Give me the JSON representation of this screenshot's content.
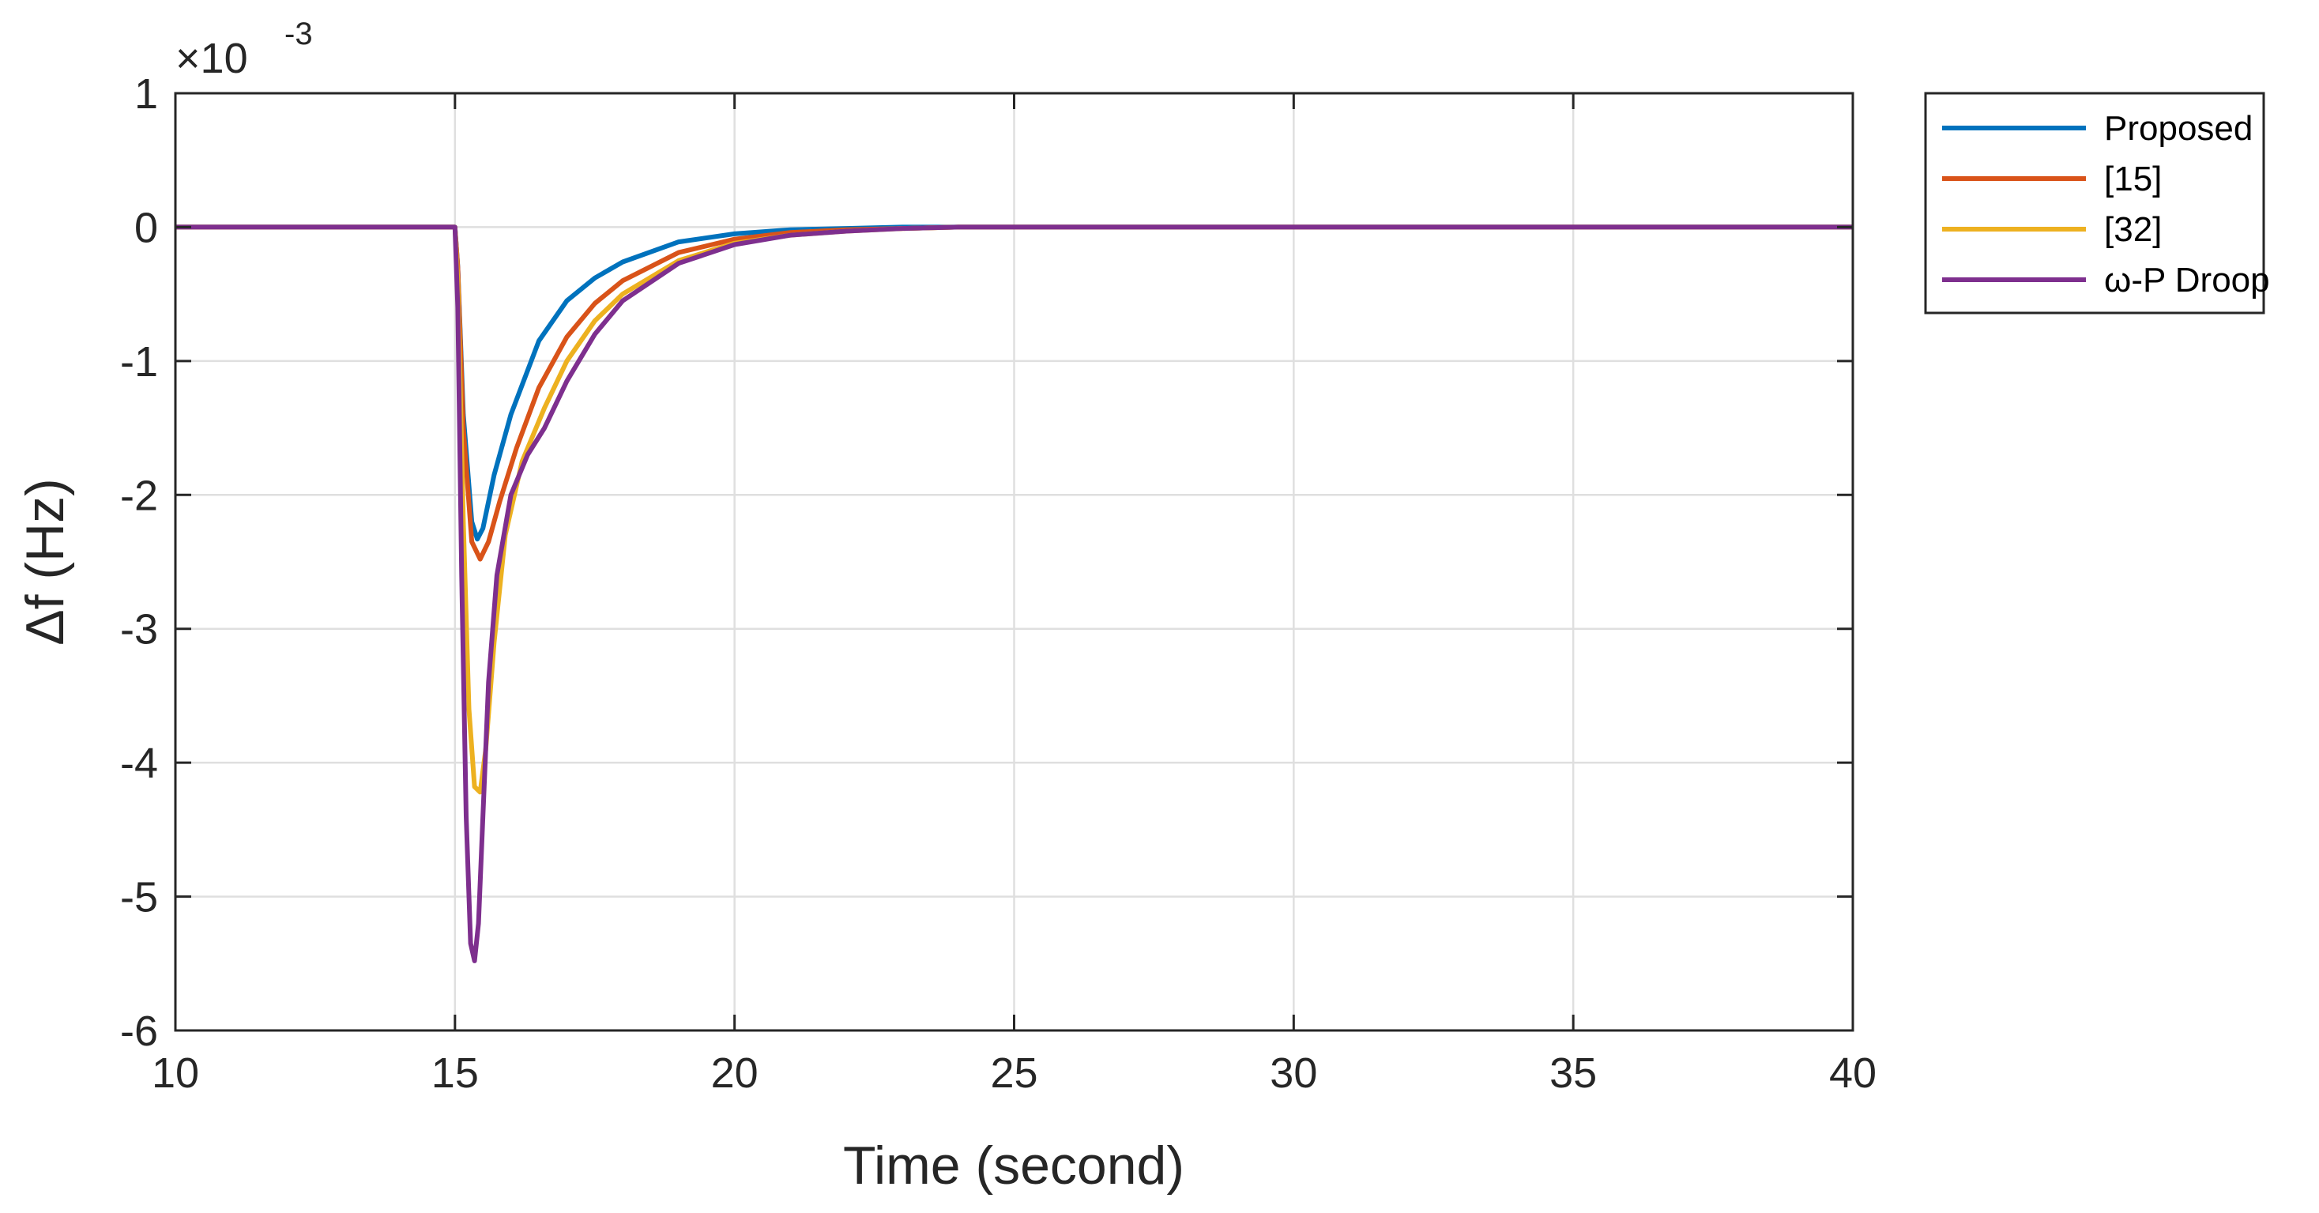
{
  "chart_data": {
    "type": "line",
    "xlabel": "Time (second)",
    "ylabel": "Δf (Hz)",
    "y_multiplier": "×10",
    "y_exponent": "-3",
    "xlim": [
      10,
      40
    ],
    "ylim": [
      -6,
      1
    ],
    "xticks": [
      "10",
      "15",
      "20",
      "25",
      "30",
      "35",
      "40"
    ],
    "yticks": [
      "1",
      "0",
      "-1",
      "-2",
      "-3",
      "-4",
      "-5",
      "-6"
    ],
    "grid": true,
    "legend_position": "outside-top-right",
    "series": [
      {
        "name": "Proposed",
        "color": "#0072BD",
        "x": [
          10,
          15,
          15.05,
          15.15,
          15.3,
          15.4,
          15.5,
          15.7,
          16.0,
          16.5,
          17.0,
          17.5,
          18.0,
          19.0,
          20.0,
          21.0,
          22.0,
          23.0,
          25.0,
          30.0,
          40.0
        ],
        "y": [
          0,
          0,
          -0.3,
          -1.4,
          -2.2,
          -2.33,
          -2.25,
          -1.85,
          -1.4,
          -0.85,
          -0.55,
          -0.38,
          -0.26,
          -0.11,
          -0.05,
          -0.02,
          -0.01,
          0,
          0,
          0,
          0
        ]
      },
      {
        "name": "[15]",
        "color": "#D95319",
        "x": [
          10,
          15,
          15.05,
          15.15,
          15.3,
          15.45,
          15.6,
          15.8,
          16.1,
          16.5,
          17.0,
          17.5,
          18.0,
          19.0,
          20.0,
          21.0,
          22.0,
          23.0,
          24.0,
          25.0,
          30.0,
          40.0
        ],
        "y": [
          0,
          0,
          -0.3,
          -1.5,
          -2.35,
          -2.48,
          -2.35,
          -2.05,
          -1.65,
          -1.2,
          -0.82,
          -0.57,
          -0.4,
          -0.19,
          -0.09,
          -0.04,
          -0.02,
          -0.01,
          0,
          0,
          0,
          0
        ]
      },
      {
        "name": "[32]",
        "color": "#EDB120",
        "x": [
          10,
          15,
          15.05,
          15.15,
          15.25,
          15.35,
          15.45,
          15.55,
          15.7,
          15.9,
          16.2,
          16.6,
          17.0,
          17.5,
          18.0,
          19.0,
          20.0,
          21.0,
          22.0,
          23.0,
          24.0,
          25.0,
          30.0,
          40.0
        ],
        "y": [
          0,
          0,
          -0.4,
          -2.2,
          -3.6,
          -4.18,
          -4.22,
          -3.9,
          -3.1,
          -2.3,
          -1.75,
          -1.35,
          -1.0,
          -0.7,
          -0.5,
          -0.25,
          -0.12,
          -0.06,
          -0.03,
          -0.01,
          0,
          0,
          0,
          0
        ]
      },
      {
        "name": "ω-P Droop",
        "color": "#7E2F8E",
        "x": [
          10,
          15,
          15.05,
          15.12,
          15.2,
          15.28,
          15.35,
          15.42,
          15.5,
          15.6,
          15.75,
          16.0,
          16.3,
          16.6,
          17.0,
          17.5,
          18.0,
          19.0,
          20.0,
          21.0,
          22.0,
          23.0,
          24.0,
          25.0,
          30.0,
          40.0
        ],
        "y": [
          0,
          0,
          -0.6,
          -2.6,
          -4.4,
          -5.35,
          -5.48,
          -5.2,
          -4.4,
          -3.4,
          -2.6,
          -2.0,
          -1.7,
          -1.5,
          -1.15,
          -0.8,
          -0.55,
          -0.27,
          -0.13,
          -0.06,
          -0.03,
          -0.01,
          0,
          0,
          0,
          0
        ]
      }
    ]
  }
}
